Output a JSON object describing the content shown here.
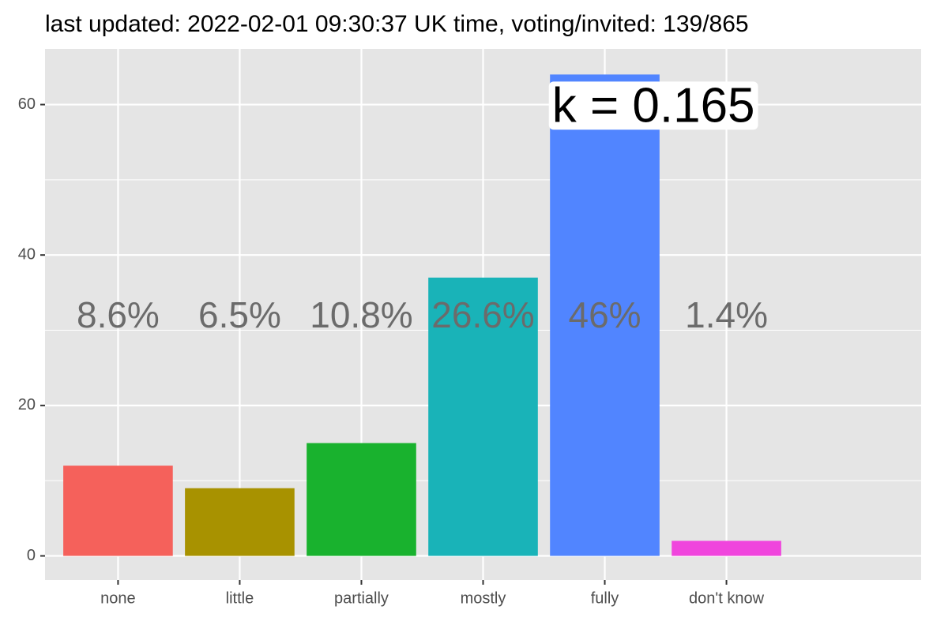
{
  "chart_data": {
    "type": "bar",
    "title": "last updated: 2022-02-01 09:30:37 UK time, voting/invited: 139/865",
    "categories": [
      "none",
      "little",
      "partially",
      "mostly",
      "fully",
      "don't know"
    ],
    "values": [
      12,
      9,
      15,
      37,
      64,
      2
    ],
    "colors": [
      "#F5615B",
      "#A89200",
      "#19B22E",
      "#19B3B8",
      "#5185FF",
      "#F045DD"
    ],
    "percent_labels": [
      "8.6%",
      "6.5%",
      "10.8%",
      "26.6%",
      "46%",
      "1.4%"
    ],
    "annotation": "k = 0.165",
    "ylim": [
      -3.2,
      67.4
    ],
    "yticks": [
      0,
      20,
      40,
      60
    ],
    "yminor": [
      10,
      30,
      50
    ],
    "grid": true
  }
}
